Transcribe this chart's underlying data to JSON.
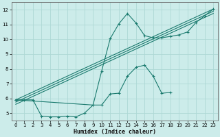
{
  "bg_color": "#ccecea",
  "grid_color": "#aed8d5",
  "line_color": "#1a7a6e",
  "xlabel": "Humidex (Indice chaleur)",
  "xlim": [
    -0.5,
    23.5
  ],
  "ylim": [
    4.5,
    12.5
  ],
  "xticks": [
    0,
    1,
    2,
    3,
    4,
    5,
    6,
    7,
    8,
    9,
    10,
    11,
    12,
    13,
    14,
    15,
    16,
    17,
    18,
    19,
    20,
    21,
    22,
    23
  ],
  "yticks": [
    5,
    6,
    7,
    8,
    9,
    10,
    11,
    12
  ],
  "series_zigzag_x": [
    0,
    1,
    2,
    3,
    4,
    5,
    6,
    7,
    8,
    9,
    10,
    11,
    12,
    13,
    14,
    15,
    16,
    17,
    18
  ],
  "series_zigzag_y": [
    5.9,
    5.9,
    5.9,
    4.8,
    4.75,
    4.75,
    4.8,
    4.75,
    5.0,
    5.55,
    5.55,
    6.3,
    6.35,
    7.5,
    8.1,
    8.25,
    7.5,
    6.35,
    6.4
  ],
  "series_peak_x": [
    0,
    9,
    10,
    11,
    12,
    13,
    14,
    15,
    16,
    17,
    18,
    19,
    20,
    21,
    22,
    23
  ],
  "series_peak_y": [
    5.9,
    5.55,
    7.85,
    10.05,
    11.05,
    11.75,
    11.1,
    10.25,
    10.1,
    10.1,
    10.2,
    10.3,
    10.5,
    11.15,
    11.6,
    12.05
  ],
  "series_line1_x": [
    0,
    23
  ],
  "series_line1_y": [
    5.9,
    12.05
  ],
  "series_line2_x": [
    0,
    23
  ],
  "series_line2_y": [
    5.75,
    11.9
  ],
  "series_line3_x": [
    0,
    23
  ],
  "series_line3_y": [
    5.6,
    11.75
  ]
}
